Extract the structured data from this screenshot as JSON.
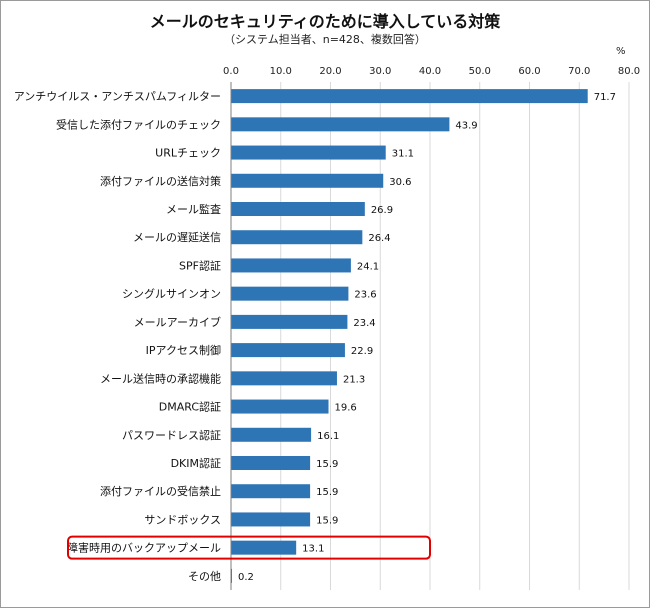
{
  "title": "メールのセキュリティのために導入している対策",
  "subtitle": "（システム担当者、n=428、複数回答）",
  "unit_label": "%",
  "colors": {
    "bar": "#2e75b6",
    "highlight_border": "#e00000",
    "grid": "#d9d9d9"
  },
  "chart_data": {
    "type": "bar",
    "orientation": "horizontal",
    "title": "メールのセキュリティのために導入している対策",
    "subtitle": "（システム担当者、n=428、複数回答）",
    "xlabel": "%",
    "xlim": [
      0,
      80
    ],
    "xticks": [
      "0.0",
      "10.0",
      "20.0",
      "30.0",
      "40.0",
      "50.0",
      "60.0",
      "70.0",
      "80.0"
    ],
    "grid": true,
    "highlighted_category": "障害時用のバックアップメール",
    "categories": [
      "アンチウイルス・アンチスパムフィルター",
      "受信した添付ファイルのチェック",
      "URLチェック",
      "添付ファイルの送信対策",
      "メール監査",
      "メールの遅延送信",
      "SPF認証",
      "シングルサインオン",
      "メールアーカイブ",
      "IPアクセス制御",
      "メール送信時の承認機能",
      "DMARC認証",
      "パスワードレス認証",
      "DKIM認証",
      "添付ファイルの受信禁止",
      "サンドボックス",
      "障害時用のバックアップメール",
      "その他"
    ],
    "values": [
      71.7,
      43.9,
      31.1,
      30.6,
      26.9,
      26.4,
      24.1,
      23.6,
      23.4,
      22.9,
      21.3,
      19.6,
      16.1,
      15.9,
      15.9,
      15.9,
      13.1,
      0.2
    ],
    "value_labels": [
      "71.7",
      "43.9",
      "31.1",
      "30.6",
      "26.9",
      "26.4",
      "24.1",
      "23.6",
      "23.4",
      "22.9",
      "21.3",
      "19.6",
      "16.1",
      "15.9",
      "15.9",
      "15.9",
      "13.1",
      "0.2"
    ]
  }
}
